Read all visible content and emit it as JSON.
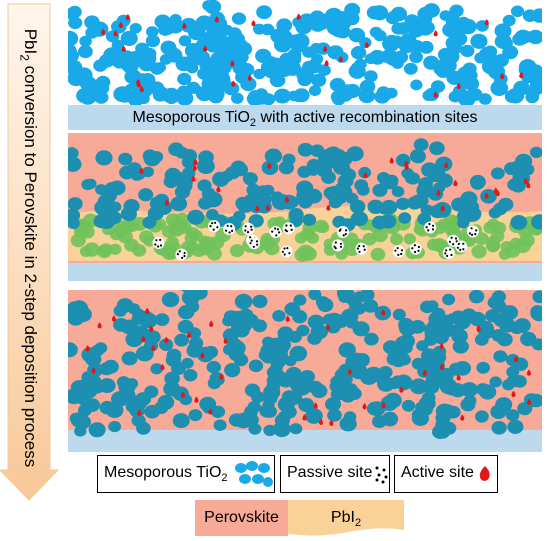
{
  "arrow": {
    "label_prefix": "PbI",
    "label_sub": "2",
    "label_rest": " conversion to Perovskite in 2-step deposition process"
  },
  "panel1": {
    "caption_prefix": "Mesoporous TiO",
    "caption_sub": "2",
    "caption_rest": " with active recombination sites"
  },
  "legend": {
    "tio2_prefix": "Mesoporous TiO",
    "tio2_sub": "2",
    "passive_label": "Passive site",
    "active_label": "Active site"
  },
  "swatches": {
    "perovskite_label": "Perovskite",
    "pbi2_prefix": "PbI",
    "pbi2_sub": "2"
  },
  "colors": {
    "tio2_light": "#1aa9e8",
    "tio2_dark": "#1d8fb0",
    "substrate": "#bcd9ee",
    "perovskite": "#f7aa98",
    "pbi2": "#f9d29a",
    "green_film": "#6fc25a",
    "active_site": "#e01818",
    "arrow_fill": "#fde2c7"
  }
}
